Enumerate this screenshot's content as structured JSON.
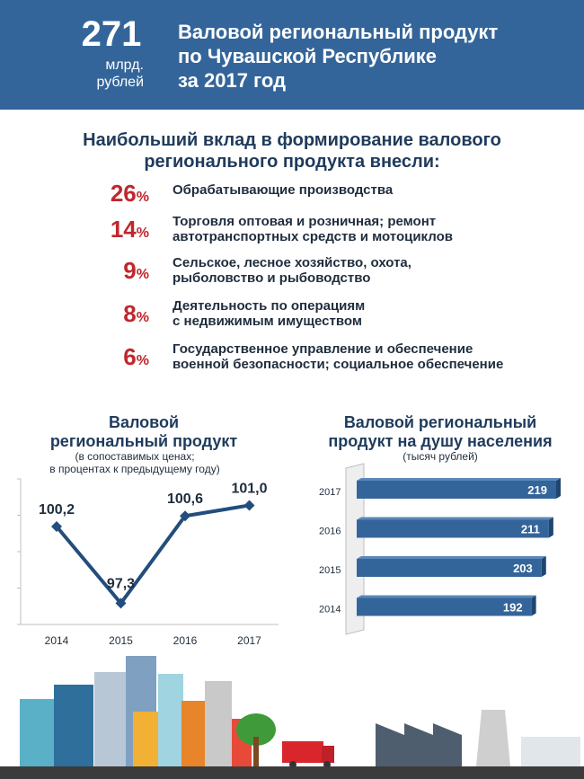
{
  "header": {
    "value": "271",
    "unit_line1": "млрд.",
    "unit_line2": "рублей",
    "title_lines": [
      "Валовой региональный продукт",
      "по Чувашской Республике",
      "за 2017 год"
    ]
  },
  "contributions": {
    "title_lines": [
      "Наибольший вклад в формирование валового",
      "регионального продукта внесли:"
    ],
    "items": [
      {
        "value": "26",
        "unit": "%",
        "lines": [
          "Обрабатывающие производства"
        ]
      },
      {
        "value": "14",
        "unit": "%",
        "lines": [
          "Торговля оптовая и розничная; ремонт",
          "автотранспортных средств и мотоциклов"
        ]
      },
      {
        "value": "9",
        "unit": "%",
        "lines": [
          "Сельское, лесное хозяйство, охота,",
          "рыболовство и рыбоводство"
        ]
      },
      {
        "value": "8",
        "unit": "%",
        "lines": [
          "Деятельность по операциям",
          "с недвижимым имуществом"
        ]
      },
      {
        "value": "6",
        "unit": "%",
        "lines": [
          "Государственное управление и обеспечение",
          "военной безопасности; социальное обеспечение"
        ]
      }
    ]
  },
  "chart_data": [
    {
      "type": "line",
      "title_lines": [
        "Валовой",
        "региональный продукт"
      ],
      "subtitle_lines": [
        "(в сопоставимых ценах;",
        "в процентах к предыдущему году)"
      ],
      "categories": [
        "2014",
        "2015",
        "2016",
        "2017"
      ],
      "values": [
        100.2,
        97.3,
        100.6,
        101.0
      ],
      "labels": [
        "100,2",
        "97,3",
        "100,6",
        "101,0"
      ],
      "ylim": [
        96.5,
        102.0
      ],
      "color": "#234d7d"
    },
    {
      "type": "bar",
      "orientation": "horizontal",
      "title_lines": [
        "Валовой региональный",
        "продукт на душу населения"
      ],
      "subtitle": "(тысяч рублей)",
      "categories": [
        "2017",
        "2016",
        "2015",
        "2014"
      ],
      "values": [
        219,
        211,
        203,
        192
      ],
      "labels": [
        "219",
        "211",
        "203",
        "192"
      ],
      "color": "#34659a"
    }
  ]
}
